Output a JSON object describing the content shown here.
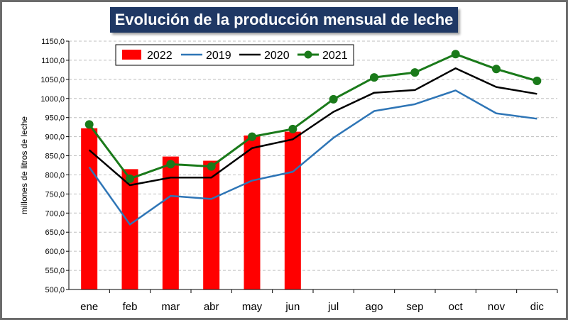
{
  "chart_data": {
    "type": "bar+line",
    "title": "Evolución de la producción mensual de leche",
    "ylabel": "millones de litros de leche",
    "xlabel": "",
    "ylim": [
      500,
      1150
    ],
    "y_tick_step": 50,
    "y_tick_labels": [
      "500,0",
      "550,0",
      "600,0",
      "650,0",
      "700,0",
      "750,0",
      "800,0",
      "850,0",
      "900,0",
      "950,0",
      "1000,0",
      "1050,0",
      "1100,0",
      "1150,0"
    ],
    "categories": [
      "ene",
      "feb",
      "mar",
      "abr",
      "may",
      "jun",
      "jul",
      "ago",
      "sep",
      "oct",
      "nov",
      "dic"
    ],
    "grid": "horizontal-dashed",
    "legend_position": "top-left",
    "series": [
      {
        "name": "2022",
        "type": "bar",
        "color": "#ff0000",
        "values": [
          922,
          815,
          848,
          837,
          903,
          913,
          null,
          null,
          null,
          null,
          null,
          null
        ]
      },
      {
        "name": "2019",
        "type": "line",
        "color": "#2e75b6",
        "values": [
          820,
          670,
          745,
          737,
          785,
          808,
          897,
          967,
          985,
          1021,
          961,
          947
        ]
      },
      {
        "name": "2020",
        "type": "line",
        "color": "#000000",
        "values": [
          865,
          773,
          793,
          793,
          870,
          893,
          965,
          1015,
          1022,
          1079,
          1030,
          1012
        ]
      },
      {
        "name": "2021",
        "type": "line-marker",
        "color": "#1a7a1a",
        "values": [
          932,
          790,
          828,
          822,
          900,
          920,
          998,
          1055,
          1068,
          1116,
          1077,
          1046
        ]
      }
    ]
  }
}
